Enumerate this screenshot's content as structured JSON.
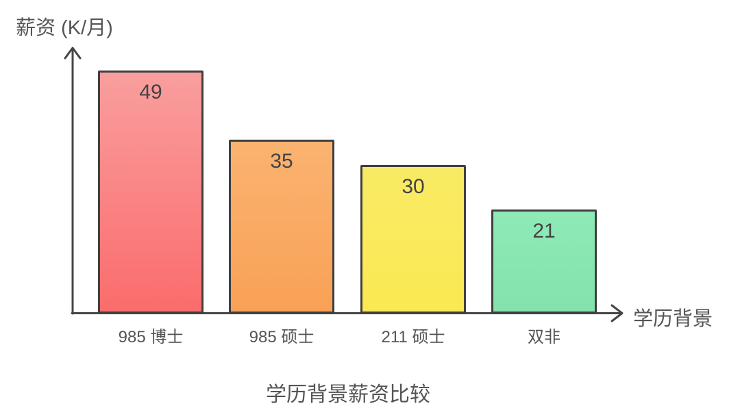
{
  "chart_data": {
    "type": "bar",
    "title": "学历背景薪资比较",
    "ylabel": "薪资 (K/月)",
    "xlabel": "学历背景",
    "categories": [
      "985 博士",
      "985 硕士",
      "211 硕士",
      "双非"
    ],
    "values": [
      49,
      35,
      30,
      21
    ],
    "ylim": [
      0,
      49
    ],
    "grid": false,
    "legend": "none",
    "value_labels_shown": true,
    "bar_colors": [
      {
        "top": "#f99e9e",
        "bottom": "#fb6c6c"
      },
      {
        "top": "#fab370",
        "bottom": "#f9a156"
      },
      {
        "top": "#f9ea65",
        "bottom": "#fae952"
      },
      {
        "top": "#8eeab6",
        "bottom": "#84e2ac"
      }
    ],
    "bar_border_color": "#3f3f3f",
    "axis_color": "#454545",
    "value_text_color": "#434343",
    "label_text_color": "#545454"
  }
}
